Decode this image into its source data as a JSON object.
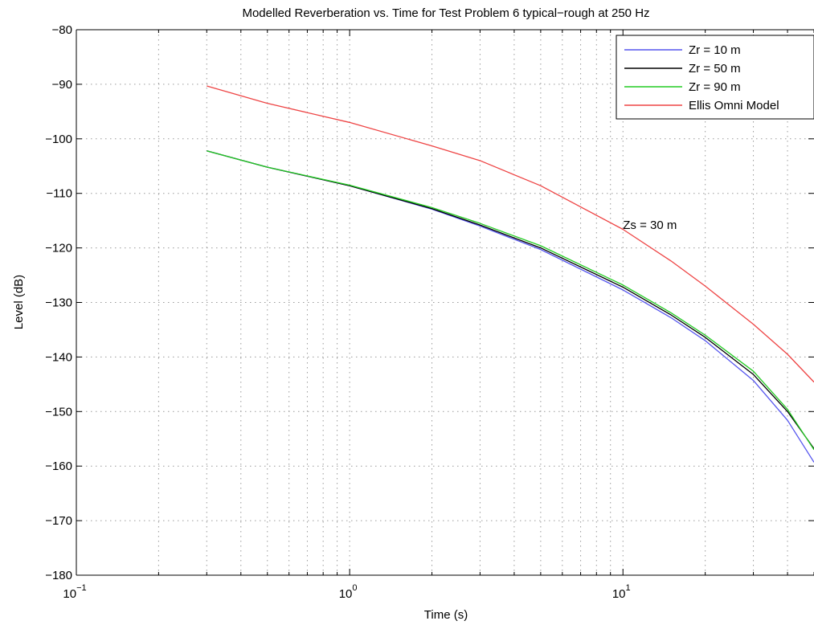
{
  "chart_data": {
    "type": "line",
    "title": "Modelled Reverberation vs. Time for Test Problem 6 typical−rough at 250 Hz",
    "xlabel": "Time (s)",
    "ylabel": "Level (dB)",
    "xscale": "log",
    "xlim": [
      0.1,
      50
    ],
    "ylim": [
      -180,
      -80
    ],
    "grid": true,
    "legend_position": "top-right",
    "x_ticks": [
      {
        "value": 0.1,
        "base": "10",
        "exp": "−1"
      },
      {
        "value": 1,
        "base": "10",
        "exp": "0"
      },
      {
        "value": 10,
        "base": "10",
        "exp": "1"
      }
    ],
    "y_ticks": [
      {
        "value": -80,
        "label": "−80"
      },
      {
        "value": -90,
        "label": "−90"
      },
      {
        "value": -100,
        "label": "−100"
      },
      {
        "value": -110,
        "label": "−110"
      },
      {
        "value": -120,
        "label": "−120"
      },
      {
        "value": -130,
        "label": "−130"
      },
      {
        "value": -140,
        "label": "−140"
      },
      {
        "value": -150,
        "label": "−150"
      },
      {
        "value": -160,
        "label": "−160"
      },
      {
        "value": -170,
        "label": "−170"
      },
      {
        "value": -180,
        "label": "−180"
      }
    ],
    "x": [
      0.3,
      0.5,
      1,
      2,
      3,
      5,
      10,
      15,
      20,
      30,
      40,
      50
    ],
    "series": [
      {
        "name": "Zr = 10 m",
        "color": "#5555ee",
        "values": [
          -102.2,
          -105.2,
          -108.6,
          -112.9,
          -116.0,
          -120.3,
          -127.7,
          -132.8,
          -137.0,
          -144.3,
          -151.6,
          -159.3
        ]
      },
      {
        "name": "Zr = 50 m",
        "color": "#000000",
        "values": [
          -102.2,
          -105.2,
          -108.6,
          -112.8,
          -115.8,
          -120.0,
          -127.2,
          -132.3,
          -136.4,
          -143.2,
          -150.0,
          -156.8
        ]
      },
      {
        "name": "Zr = 90 m",
        "color": "#22cc22",
        "values": [
          -102.2,
          -105.2,
          -108.5,
          -112.6,
          -115.5,
          -119.6,
          -126.8,
          -131.9,
          -136.0,
          -142.6,
          -149.6,
          -157.0
        ]
      },
      {
        "name": "Ellis Omni Model",
        "color": "#ee4444",
        "values": [
          -90.3,
          -93.5,
          -97.0,
          -101.3,
          -104.0,
          -108.6,
          -116.6,
          -122.4,
          -127.0,
          -134.0,
          -139.5,
          -144.6
        ]
      }
    ],
    "annotations": [
      {
        "text": "Zs = 30 m",
        "x": 10,
        "y": -115.8
      }
    ]
  }
}
